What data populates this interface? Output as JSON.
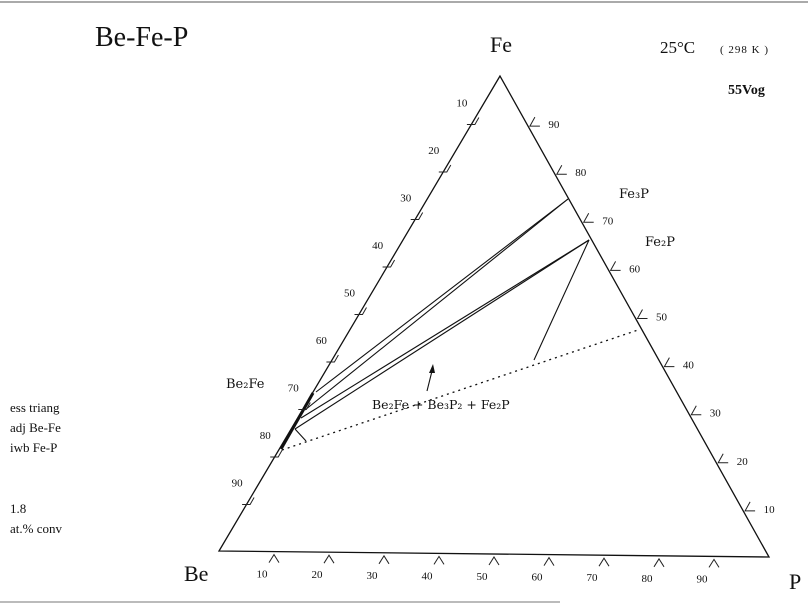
{
  "title": "Be-Fe-P",
  "vertices": {
    "top": "Fe",
    "left": "Be",
    "right": "P"
  },
  "temperature": {
    "celsius": "25°C",
    "kelvin": "( 298 K )"
  },
  "reference": "55Vog",
  "phases": {
    "fe3p": "Fe₃P",
    "fe2p": "Fe₂P",
    "be2fe": "Be₂Fe"
  },
  "field_label": "Be₂Fe + Be₃P₂ + Fe₂P",
  "notes": [
    "ess triang",
    "adj Be-Fe",
    "iwb Fe-P"
  ],
  "conditions": [
    "1.8",
    "at.% conv"
  ],
  "ticks": {
    "left": [
      "10",
      "20",
      "30",
      "40",
      "50",
      "60",
      "70",
      "80",
      "90"
    ],
    "right": [
      "90",
      "80",
      "70",
      "60",
      "50",
      "40",
      "30",
      "20",
      "10"
    ],
    "bottom": [
      "10",
      "20",
      "30",
      "40",
      "50",
      "60",
      "70",
      "80",
      "90"
    ]
  }
}
